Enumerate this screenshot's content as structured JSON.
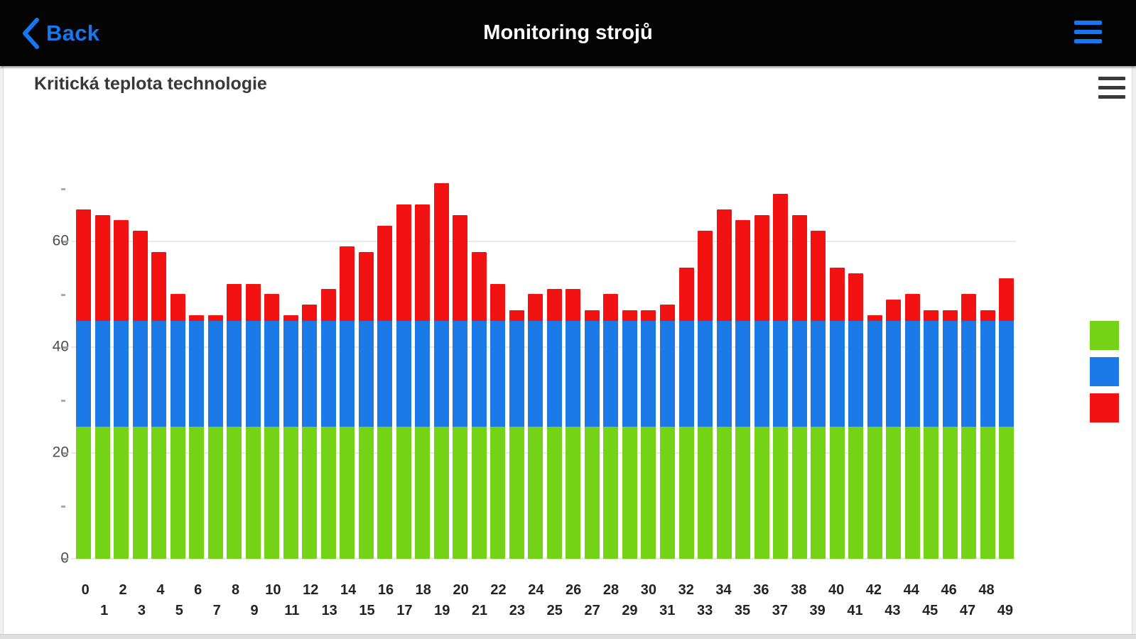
{
  "navbar": {
    "back_label": "Back",
    "title": "Monitoring strojů"
  },
  "chart": {
    "title": "Kritická teplota technologie"
  },
  "chart_data": {
    "type": "bar",
    "stacked": true,
    "title": "Kritická teplota technologie",
    "categories": [
      0,
      1,
      2,
      3,
      4,
      5,
      6,
      7,
      8,
      9,
      10,
      11,
      12,
      13,
      14,
      15,
      16,
      17,
      18,
      19,
      20,
      21,
      22,
      23,
      24,
      25,
      26,
      27,
      28,
      29,
      30,
      31,
      32,
      33,
      34,
      35,
      36,
      37,
      38,
      39,
      40,
      41,
      42,
      43,
      44,
      45,
      46,
      47,
      48,
      49
    ],
    "series": [
      {
        "name": "green",
        "color": "#74d316",
        "values": [
          25,
          25,
          25,
          25,
          25,
          25,
          25,
          25,
          25,
          25,
          25,
          25,
          25,
          25,
          25,
          25,
          25,
          25,
          25,
          25,
          25,
          25,
          25,
          25,
          25,
          25,
          25,
          25,
          25,
          25,
          25,
          25,
          25,
          25,
          25,
          25,
          25,
          25,
          25,
          25,
          25,
          25,
          25,
          25,
          25,
          25,
          25,
          25,
          25,
          25
        ]
      },
      {
        "name": "blue",
        "color": "#1c7ae8",
        "values": [
          20,
          20,
          20,
          20,
          20,
          20,
          20,
          20,
          20,
          20,
          20,
          20,
          20,
          20,
          20,
          20,
          20,
          20,
          20,
          20,
          20,
          20,
          20,
          20,
          20,
          20,
          20,
          20,
          20,
          20,
          20,
          20,
          20,
          20,
          20,
          20,
          20,
          20,
          20,
          20,
          20,
          20,
          20,
          20,
          20,
          20,
          20,
          20,
          20,
          20
        ]
      },
      {
        "name": "red",
        "color": "#f21212",
        "values": [
          21,
          20,
          19,
          17,
          13,
          5,
          1,
          1,
          7,
          7,
          5,
          1,
          3,
          6,
          14,
          13,
          18,
          22,
          22,
          26,
          20,
          13,
          7,
          2,
          5,
          6,
          6,
          2,
          5,
          2,
          2,
          3,
          10,
          17,
          21,
          19,
          20,
          24,
          20,
          17,
          10,
          9,
          1,
          4,
          5,
          2,
          2,
          5,
          2,
          8
        ]
      }
    ],
    "stack_totals": [
      66,
      65,
      64,
      62,
      58,
      50,
      46,
      46,
      52,
      52,
      50,
      46,
      48,
      51,
      59,
      58,
      63,
      67,
      67,
      71,
      65,
      58,
      52,
      47,
      50,
      51,
      51,
      47,
      50,
      47,
      47,
      48,
      55,
      62,
      66,
      64,
      65,
      69,
      65,
      62,
      55,
      54,
      46,
      49,
      50,
      47,
      47,
      50,
      47,
      53
    ],
    "y_axis": {
      "ticks": [
        0,
        20,
        40,
        60
      ],
      "minor_ticks": [
        10,
        30,
        50,
        70
      ],
      "ylim": [
        0,
        75
      ]
    },
    "x_axis": {
      "label_rows": 2
    },
    "grid": true,
    "legend_position": "right",
    "legend": {
      "items": [
        {
          "name": "green",
          "color": "#74d316"
        },
        {
          "name": "blue",
          "color": "#1c7ae8"
        },
        {
          "name": "red",
          "color": "#f21212"
        }
      ]
    }
  },
  "colors": {
    "navbar_bg": "#040404",
    "accent_blue": "#1677f0",
    "green": "#74d316",
    "blue": "#1c7ae8",
    "red": "#f21212"
  }
}
